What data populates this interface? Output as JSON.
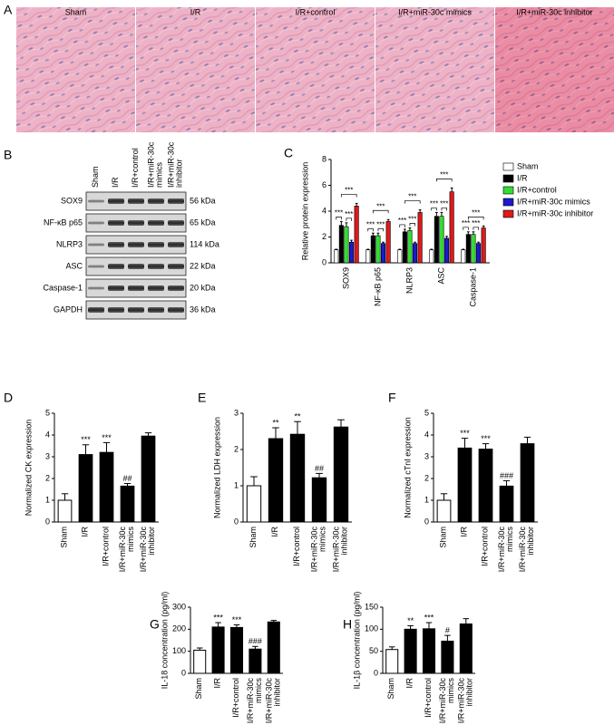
{
  "histology": {
    "letter": "A",
    "labels": [
      "Sham",
      "I/R",
      "I/R+control",
      "I/R+miR-30c mimics",
      "I/R+miR-30c inhibitor"
    ]
  },
  "western_blot": {
    "letter": "B",
    "lanes": [
      "Sham",
      "I/R",
      "I/R+control",
      "I/R+miR-30c mimics",
      "I/R+miR-30c inhibitor"
    ],
    "proteins": [
      "SOX9",
      "NF-κB p65",
      "NLRP3",
      "ASC",
      "Caspase-1",
      "GAPDH"
    ],
    "sizes": [
      "56 kDa",
      "65 kDa",
      "114 kDa",
      "22 kDa",
      "20 kDa",
      "36 kDa"
    ]
  },
  "chart_data": [
    {
      "type": "grouped_bar",
      "letter": "C",
      "y_label": "Relative protein expression",
      "categories": [
        "SOX9",
        "NF-κB p65",
        "NLRP3",
        "ASC",
        "Caspase-1"
      ],
      "series": [
        {
          "name": "Sham",
          "color": "#ffffff",
          "values": [
            1,
            1,
            1,
            1,
            1
          ],
          "errors": [
            0.05,
            0.05,
            0.05,
            0.05,
            0.05
          ]
        },
        {
          "name": "I/R",
          "color": "#000000",
          "values": [
            2.9,
            2.1,
            2.4,
            3.6,
            2.2
          ],
          "errors": [
            0.3,
            0.2,
            0.2,
            0.3,
            0.2
          ]
        },
        {
          "name": "I/R+control",
          "color": "#33dd33",
          "values": [
            2.8,
            2.1,
            2.5,
            3.6,
            2.2
          ],
          "errors": [
            0.3,
            0.2,
            0.2,
            0.3,
            0.2
          ]
        },
        {
          "name": "I/R+miR-30c mimics",
          "color": "#1a1acc",
          "values": [
            1.6,
            1.5,
            1.5,
            1.9,
            1.5
          ],
          "errors": [
            0.15,
            0.1,
            0.1,
            0.15,
            0.1
          ]
        },
        {
          "name": "I/R+miR-30c inhibitor",
          "color": "#dd1a1a",
          "values": [
            4.4,
            3.2,
            3.9,
            5.5,
            2.7
          ],
          "errors": [
            0.2,
            0.15,
            0.2,
            0.3,
            0.15
          ]
        }
      ],
      "brackets": [
        [
          0,
          1
        ],
        [
          2,
          3
        ],
        [
          1,
          4
        ]
      ],
      "bracket_labels": [
        [
          "***",
          "***",
          "***"
        ],
        [
          "***",
          "***",
          "***"
        ],
        [
          "***",
          "***",
          "***"
        ],
        [
          "***",
          "***",
          "***"
        ],
        [
          "***",
          "***",
          "***"
        ]
      ],
      "ylim": [
        0,
        8
      ],
      "yticks": [
        0,
        2,
        4,
        6,
        8
      ],
      "legend": "right"
    },
    {
      "type": "bar",
      "letter": "D",
      "y_label": "Normalized CK expression",
      "categories": [
        "Sham",
        "I/R",
        "I/R+control",
        "I/R+miR-30c mimics",
        "I/R+miR-30c inhibitor"
      ],
      "colors": [
        "#ffffff",
        "#000000",
        "#000000",
        "#000000",
        "#000000"
      ],
      "values": [
        1.0,
        3.1,
        3.2,
        1.65,
        3.95
      ],
      "errors": [
        0.3,
        0.45,
        0.45,
        0.12,
        0.15
      ],
      "annotations": [
        null,
        "***",
        "***",
        "##",
        null
      ],
      "ylim": [
        0,
        5
      ],
      "yticks": [
        0,
        1,
        2,
        3,
        4,
        5
      ]
    },
    {
      "type": "bar",
      "letter": "E",
      "y_label": "Normalized LDH expression",
      "categories": [
        "Sham",
        "I/R",
        "I/R+control",
        "I/R+miR-30c mimics",
        "I/R+miR-30c inhibitor"
      ],
      "colors": [
        "#ffffff",
        "#000000",
        "#000000",
        "#000000",
        "#000000"
      ],
      "values": [
        1.0,
        2.3,
        2.42,
        1.22,
        2.62
      ],
      "errors": [
        0.25,
        0.3,
        0.35,
        0.12,
        0.2
      ],
      "annotations": [
        null,
        "**",
        "**",
        "##",
        null
      ],
      "ylim": [
        0,
        3
      ],
      "yticks": [
        0,
        1,
        2,
        3
      ]
    },
    {
      "type": "bar",
      "letter": "F",
      "y_label": "Normalized cTnI expression",
      "categories": [
        "Sham",
        "I/R",
        "I/R+control",
        "I/R+miR-30c mimics",
        "I/R+miR-30c inhibitor"
      ],
      "colors": [
        "#ffffff",
        "#000000",
        "#000000",
        "#000000",
        "#000000"
      ],
      "values": [
        1.0,
        3.4,
        3.35,
        1.65,
        3.6
      ],
      "errors": [
        0.3,
        0.45,
        0.25,
        0.25,
        0.3
      ],
      "annotations": [
        null,
        "***",
        "***",
        "###",
        null
      ],
      "ylim": [
        0,
        5
      ],
      "yticks": [
        0,
        1,
        2,
        3,
        4,
        5
      ]
    },
    {
      "type": "bar",
      "letter": "G",
      "y_label": "IL-18 concentration (pg/ml)",
      "categories": [
        "Sham",
        "I/R",
        "I/R+control",
        "I/R+miR-30c mimics",
        "I/R+miR-30c inhibitor"
      ],
      "colors": [
        "#ffffff",
        "#000000",
        "#000000",
        "#000000",
        "#000000"
      ],
      "values": [
        105,
        210,
        208,
        110,
        233
      ],
      "errors": [
        10,
        20,
        12,
        12,
        7
      ],
      "annotations": [
        null,
        "***",
        "***",
        "###",
        null
      ],
      "ylim": [
        0,
        300
      ],
      "yticks": [
        0,
        100,
        200,
        300
      ]
    },
    {
      "type": "bar",
      "letter": "H",
      "y_label": "IL-1β concentration (pg/ml)",
      "categories": [
        "Sham",
        "I/R",
        "I/R+control",
        "I/R+miR-30c mimics",
        "I/R+miR-30c inhibitor"
      ],
      "colors": [
        "#ffffff",
        "#000000",
        "#000000",
        "#000000",
        "#000000"
      ],
      "values": [
        54,
        100,
        101,
        73,
        112
      ],
      "errors": [
        6,
        8,
        14,
        13,
        12
      ],
      "annotations": [
        null,
        "**",
        "***",
        "#",
        null
      ],
      "ylim": [
        0,
        150
      ],
      "yticks": [
        0,
        50,
        100,
        150
      ]
    }
  ]
}
